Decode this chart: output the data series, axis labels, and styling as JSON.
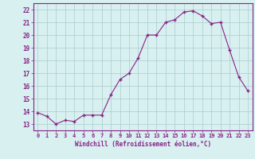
{
  "hours": [
    0,
    1,
    2,
    3,
    4,
    5,
    6,
    7,
    8,
    9,
    10,
    11,
    12,
    13,
    14,
    15,
    16,
    17,
    18,
    19,
    20,
    21,
    22,
    23
  ],
  "values": [
    13.9,
    13.6,
    13.0,
    13.3,
    13.2,
    13.7,
    13.7,
    13.7,
    15.3,
    16.5,
    17.0,
    18.2,
    20.0,
    20.0,
    21.0,
    21.2,
    21.8,
    21.9,
    21.5,
    20.9,
    21.0,
    18.8,
    16.7,
    15.6
  ],
  "ylim": [
    12.5,
    22.5
  ],
  "yticks": [
    13,
    14,
    15,
    16,
    17,
    18,
    19,
    20,
    21,
    22
  ],
  "xtick_labels": [
    "0",
    "1",
    "2",
    "3",
    "4",
    "5",
    "6",
    "7",
    "8",
    "9",
    "10",
    "11",
    "12",
    "13",
    "14",
    "15",
    "16",
    "17",
    "18",
    "19",
    "20",
    "21",
    "22",
    "23"
  ],
  "xlabel": "Windchill (Refroidissement éolien,°C)",
  "line_color": "#882288",
  "marker_color": "#882288",
  "bg_color": "#d8f0f0",
  "grid_color": "#aacccc",
  "axis_color": "#882288",
  "tick_color": "#882288",
  "xlabel_color": "#882288"
}
